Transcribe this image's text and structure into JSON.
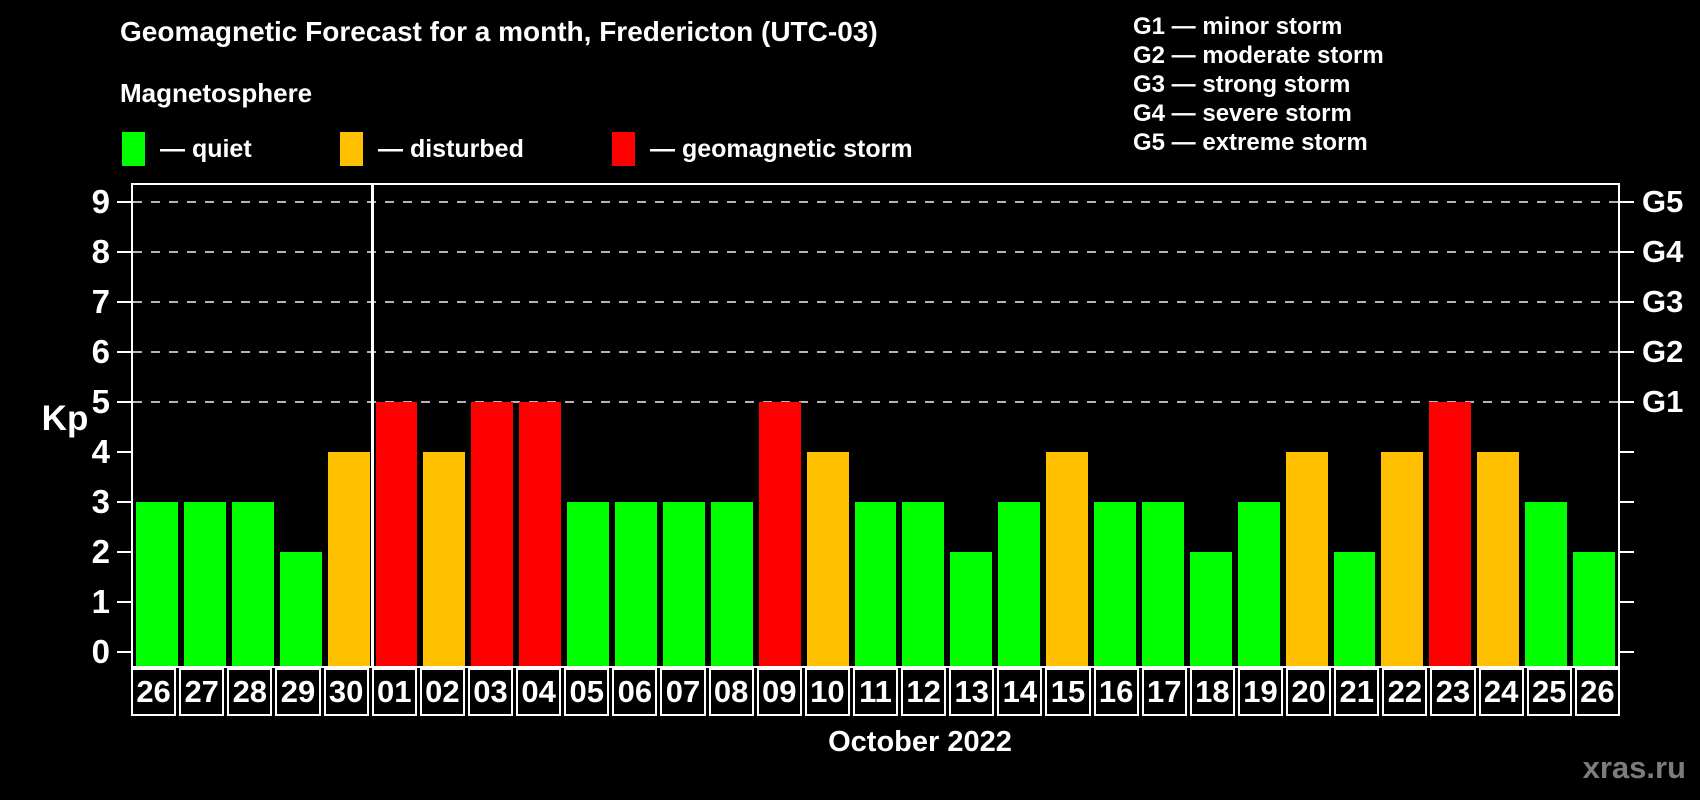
{
  "header": {
    "title": "Geomagnetic Forecast for a month, Fredericton (UTC-03)",
    "subtitle": "Magnetosphere"
  },
  "legend": {
    "items": [
      {
        "key": "quiet",
        "label": "— quiet",
        "color": "#00ff00"
      },
      {
        "key": "disturbed",
        "label": "— disturbed",
        "color": "#ffc000"
      },
      {
        "key": "storm",
        "label": "— geomagnetic storm",
        "color": "#ff0000"
      }
    ]
  },
  "g_scale_legend": [
    "G1 — minor storm",
    "G2 — moderate storm",
    "G3 — strong storm",
    "G4 — severe storm",
    "G5 — extreme storm"
  ],
  "watermark": "xras.ru",
  "chart_data": {
    "type": "bar",
    "title": "Geomagnetic Forecast for a month, Fredericton (UTC-03)",
    "ylabel": "Kp",
    "xlabel": "October 2022",
    "month_label": "October 2022",
    "ylim": [
      0,
      9.4
    ],
    "yticks": [
      0,
      1,
      2,
      3,
      4,
      5,
      6,
      7,
      8,
      9
    ],
    "gridlines_at_kp": [
      5,
      6,
      7,
      8,
      9
    ],
    "grid": "dashed horizontal at G-storm levels only",
    "legend_position": "top",
    "right_axis": [
      {
        "kp": 5,
        "label": "G1"
      },
      {
        "kp": 6,
        "label": "G2"
      },
      {
        "kp": 7,
        "label": "G3"
      },
      {
        "kp": 8,
        "label": "G4"
      },
      {
        "kp": 9,
        "label": "G5"
      }
    ],
    "status_colors": {
      "quiet": "#00ff00",
      "disturbed": "#ffc000",
      "storm": "#ff0000"
    },
    "month_separator_after_index": 4,
    "bars": [
      {
        "date": "26",
        "kp": 3,
        "status": "quiet"
      },
      {
        "date": "27",
        "kp": 3,
        "status": "quiet"
      },
      {
        "date": "28",
        "kp": 3,
        "status": "quiet"
      },
      {
        "date": "29",
        "kp": 2,
        "status": "quiet"
      },
      {
        "date": "30",
        "kp": 4,
        "status": "disturbed"
      },
      {
        "date": "01",
        "kp": 5,
        "status": "storm"
      },
      {
        "date": "02",
        "kp": 4,
        "status": "disturbed"
      },
      {
        "date": "03",
        "kp": 5,
        "status": "storm"
      },
      {
        "date": "04",
        "kp": 5,
        "status": "storm"
      },
      {
        "date": "05",
        "kp": 3,
        "status": "quiet"
      },
      {
        "date": "06",
        "kp": 3,
        "status": "quiet"
      },
      {
        "date": "07",
        "kp": 3,
        "status": "quiet"
      },
      {
        "date": "08",
        "kp": 3,
        "status": "quiet"
      },
      {
        "date": "09",
        "kp": 5,
        "status": "storm"
      },
      {
        "date": "10",
        "kp": 4,
        "status": "disturbed"
      },
      {
        "date": "11",
        "kp": 3,
        "status": "quiet"
      },
      {
        "date": "12",
        "kp": 3,
        "status": "quiet"
      },
      {
        "date": "13",
        "kp": 2,
        "status": "quiet"
      },
      {
        "date": "14",
        "kp": 3,
        "status": "quiet"
      },
      {
        "date": "15",
        "kp": 4,
        "status": "disturbed"
      },
      {
        "date": "16",
        "kp": 3,
        "status": "quiet"
      },
      {
        "date": "17",
        "kp": 3,
        "status": "quiet"
      },
      {
        "date": "18",
        "kp": 2,
        "status": "quiet"
      },
      {
        "date": "19",
        "kp": 3,
        "status": "quiet"
      },
      {
        "date": "20",
        "kp": 4,
        "status": "disturbed"
      },
      {
        "date": "21",
        "kp": 2,
        "status": "quiet"
      },
      {
        "date": "22",
        "kp": 4,
        "status": "disturbed"
      },
      {
        "date": "23",
        "kp": 5,
        "status": "storm"
      },
      {
        "date": "24",
        "kp": 4,
        "status": "disturbed"
      },
      {
        "date": "25",
        "kp": 3,
        "status": "quiet"
      },
      {
        "date": "26",
        "kp": 2,
        "status": "quiet"
      }
    ]
  }
}
